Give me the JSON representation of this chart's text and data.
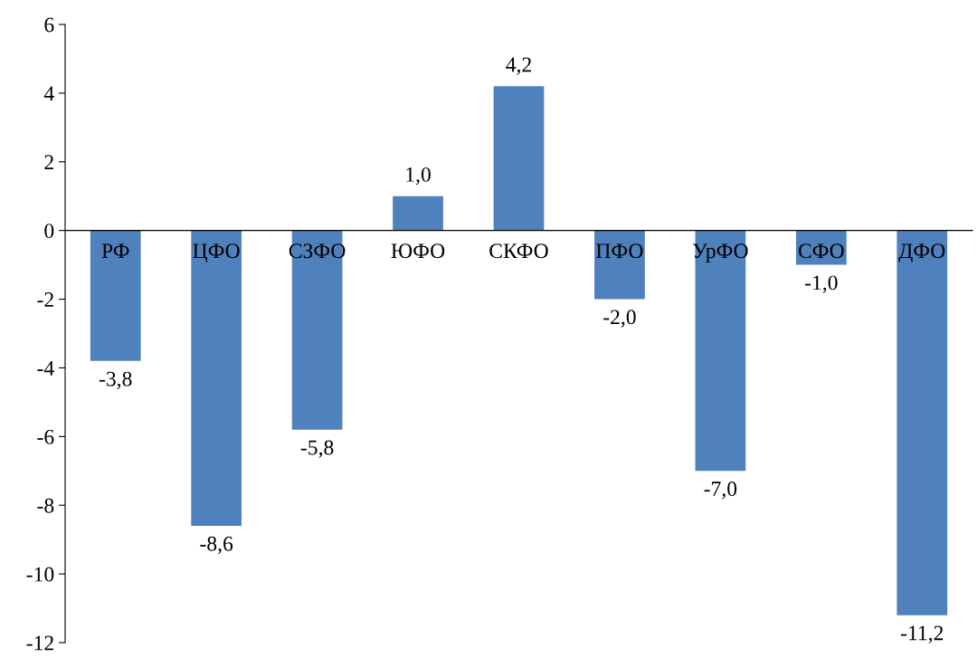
{
  "chart_data": {
    "type": "bar",
    "categories": [
      "РФ",
      "ЦФО",
      "СЗФО",
      "ЮФО",
      "СКФО",
      "ПФО",
      "УрФО",
      "СФО",
      "ДФО"
    ],
    "values": [
      -3.8,
      -8.6,
      -5.8,
      1.0,
      4.2,
      -2.0,
      -7.0,
      -1.0,
      -11.2
    ],
    "value_labels": [
      "-3,8",
      "-8,6",
      "-5,8",
      "1,0",
      "4,2",
      "-2,0",
      "-7,0",
      "-1,0",
      "-11,2"
    ],
    "color": "#4f81bd",
    "ylim": [
      -12,
      6
    ],
    "yticks": [
      {
        "value": -12,
        "label": "-12"
      },
      {
        "value": -10,
        "label": "-10"
      },
      {
        "value": -8,
        "label": "-8"
      },
      {
        "value": -6,
        "label": "-6"
      },
      {
        "value": -4,
        "label": "-4"
      },
      {
        "value": -2,
        "label": "-2"
      },
      0,
      2,
      4,
      6
    ],
    "grid": false,
    "legend": false
  }
}
